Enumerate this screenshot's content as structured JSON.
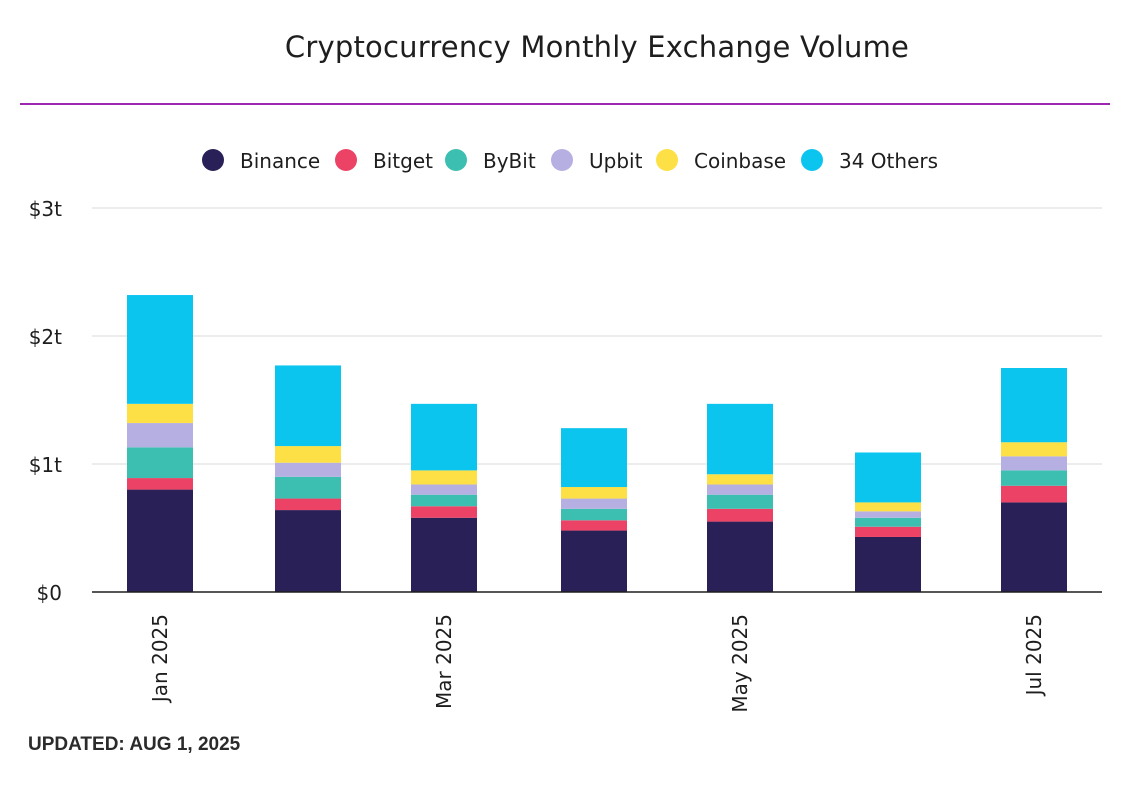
{
  "header": {
    "title": "Cryptocurrency Monthly Exchange Volume"
  },
  "footer": {
    "updated": "UPDATED: AUG 1, 2025"
  },
  "chart_data": {
    "type": "bar",
    "stacked": true,
    "title": "Cryptocurrency Monthly Exchange Volume",
    "xlabel": "",
    "ylabel": "",
    "ylim": [
      0,
      3
    ],
    "yticks": [
      0,
      1,
      2,
      3
    ],
    "ytick_labels": [
      "$0",
      "$1t",
      "$2t",
      "$3t"
    ],
    "categories": [
      "Jan 2025",
      "Feb 2025",
      "Mar 2025",
      "Apr 2025",
      "May 2025",
      "Jun 2025",
      "Jul 2025"
    ],
    "visible_xtick_labels": [
      "Jan 2025",
      "Mar 2025",
      "May 2025",
      "Jul 2025"
    ],
    "legend_position": "top-center",
    "grid": true,
    "series": [
      {
        "name": "Binance",
        "color": "#2a2058",
        "values": [
          0.8,
          0.64,
          0.58,
          0.48,
          0.55,
          0.43,
          0.7
        ]
      },
      {
        "name": "Bitget",
        "color": "#ec4265",
        "values": [
          0.09,
          0.09,
          0.09,
          0.08,
          0.1,
          0.08,
          0.13
        ]
      },
      {
        "name": "ByBit",
        "color": "#3cbfb1",
        "values": [
          0.24,
          0.17,
          0.09,
          0.09,
          0.11,
          0.07,
          0.12
        ]
      },
      {
        "name": "Upbit",
        "color": "#b6b0e2",
        "values": [
          0.19,
          0.11,
          0.08,
          0.08,
          0.08,
          0.05,
          0.11
        ]
      },
      {
        "name": "Coinbase",
        "color": "#fde045",
        "values": [
          0.15,
          0.13,
          0.11,
          0.09,
          0.08,
          0.07,
          0.11
        ]
      },
      {
        "name": "34 Others",
        "color": "#0cc5ef",
        "values": [
          0.85,
          0.63,
          0.52,
          0.46,
          0.55,
          0.39,
          0.58
        ]
      }
    ]
  }
}
